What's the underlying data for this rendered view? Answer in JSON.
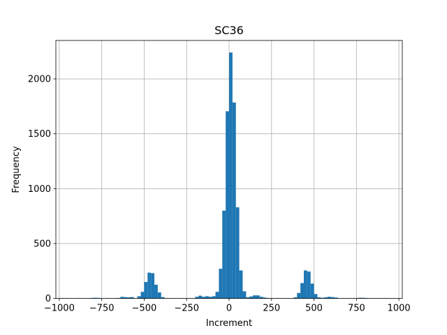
{
  "chart_data": {
    "type": "bar",
    "title": "SC36",
    "xlabel": "Increment",
    "ylabel": "Frequency",
    "xlim": [
      -1000,
      1000
    ],
    "ylim": [
      0,
      2350
    ],
    "grid": true,
    "bar_color": "#1f77b4",
    "bin_width": 20,
    "xticks": [
      -1000,
      -750,
      -500,
      -250,
      0,
      250,
      500,
      750,
      1000
    ],
    "xtick_labels": [
      "−1000",
      "−750",
      "−500",
      "−250",
      "0",
      "250",
      "500",
      "750",
      "1000"
    ],
    "yticks": [
      0,
      500,
      1000,
      1500,
      2000
    ],
    "ytick_labels": [
      "0",
      "500",
      "1000",
      "1500",
      "2000"
    ],
    "bins": [
      {
        "x": -810,
        "value": 4
      },
      {
        "x": -790,
        "value": 6
      },
      {
        "x": -770,
        "value": 5
      },
      {
        "x": -650,
        "value": 4
      },
      {
        "x": -630,
        "value": 15
      },
      {
        "x": -610,
        "value": 12
      },
      {
        "x": -590,
        "value": 10
      },
      {
        "x": -570,
        "value": 12
      },
      {
        "x": -530,
        "value": 20
      },
      {
        "x": -510,
        "value": 60
      },
      {
        "x": -490,
        "value": 150
      },
      {
        "x": -470,
        "value": 235
      },
      {
        "x": -450,
        "value": 230
      },
      {
        "x": -430,
        "value": 125
      },
      {
        "x": -410,
        "value": 55
      },
      {
        "x": -390,
        "value": 12
      },
      {
        "x": -190,
        "value": 15
      },
      {
        "x": -170,
        "value": 25
      },
      {
        "x": -150,
        "value": 15
      },
      {
        "x": -130,
        "value": 20
      },
      {
        "x": -110,
        "value": 15
      },
      {
        "x": -90,
        "value": 20
      },
      {
        "x": -70,
        "value": 60
      },
      {
        "x": -50,
        "value": 270
      },
      {
        "x": -30,
        "value": 800
      },
      {
        "x": -10,
        "value": 1705
      },
      {
        "x": 10,
        "value": 2240
      },
      {
        "x": 30,
        "value": 1785
      },
      {
        "x": 50,
        "value": 830
      },
      {
        "x": 70,
        "value": 255
      },
      {
        "x": 90,
        "value": 65
      },
      {
        "x": 110,
        "value": 10
      },
      {
        "x": 130,
        "value": 18
      },
      {
        "x": 150,
        "value": 28
      },
      {
        "x": 170,
        "value": 28
      },
      {
        "x": 190,
        "value": 15
      },
      {
        "x": 210,
        "value": 8
      },
      {
        "x": 230,
        "value": 4
      },
      {
        "x": 390,
        "value": 10
      },
      {
        "x": 410,
        "value": 50
      },
      {
        "x": 430,
        "value": 140
      },
      {
        "x": 450,
        "value": 255
      },
      {
        "x": 470,
        "value": 245
      },
      {
        "x": 490,
        "value": 135
      },
      {
        "x": 510,
        "value": 40
      },
      {
        "x": 530,
        "value": 10
      },
      {
        "x": 550,
        "value": 6
      },
      {
        "x": 570,
        "value": 10
      },
      {
        "x": 590,
        "value": 15
      },
      {
        "x": 610,
        "value": 12
      },
      {
        "x": 630,
        "value": 8
      },
      {
        "x": 770,
        "value": 6
      },
      {
        "x": 790,
        "value": 6
      },
      {
        "x": 810,
        "value": 4
      }
    ]
  }
}
